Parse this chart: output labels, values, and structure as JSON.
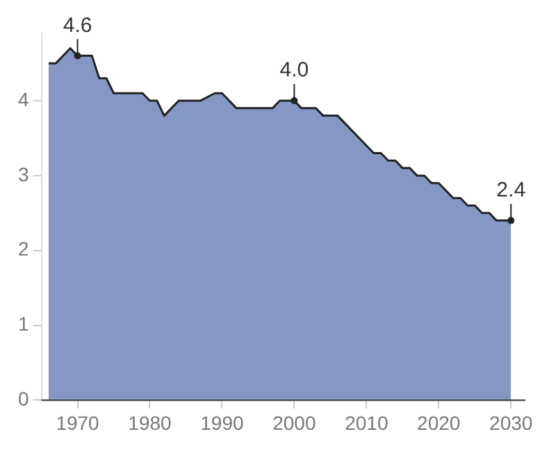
{
  "chart_data": {
    "type": "area",
    "x": [
      1966,
      1967,
      1969,
      1970,
      1972,
      1973,
      1974,
      1975,
      1979,
      1980,
      1981,
      1982,
      1984,
      1987,
      1989,
      1990,
      1992,
      1997,
      1998,
      2000,
      2001,
      2003,
      2004,
      2006,
      2007,
      2008,
      2009,
      2010,
      2011,
      2012,
      2013,
      2014,
      2015,
      2016,
      2017,
      2018,
      2019,
      2020,
      2021,
      2022,
      2023,
      2024,
      2025,
      2026,
      2027,
      2028,
      2029,
      2030
    ],
    "series": [
      {
        "color": "#8597c3",
        "values": [
          4.5,
          4.5,
          4.7,
          4.6,
          4.6,
          4.3,
          4.3,
          4.1,
          4.1,
          4.0,
          4.0,
          3.8,
          4.0,
          4.0,
          4.1,
          4.1,
          3.9,
          3.9,
          4.0,
          4.0,
          3.9,
          3.9,
          3.8,
          3.8,
          3.7,
          3.6,
          3.5,
          3.4,
          3.3,
          3.3,
          3.2,
          3.2,
          3.1,
          3.1,
          3.0,
          3.0,
          2.9,
          2.9,
          2.8,
          2.7,
          2.7,
          2.6,
          2.6,
          2.5,
          2.5,
          2.4,
          2.4,
          2.4
        ]
      }
    ],
    "xlim": [
      1965,
      2032
    ],
    "xticks": [
      1970,
      1980,
      1990,
      2000,
      2010,
      2020,
      2030
    ],
    "ylim": [
      0,
      4.9
    ],
    "yticks": [
      0,
      1,
      2,
      3,
      4
    ],
    "grid": false,
    "legend": false,
    "line_style": "solid",
    "annotations": [
      {
        "text": "4.6",
        "x": 1970,
        "y": 4.6
      },
      {
        "text": "4.0",
        "x": 2000,
        "y": 4.0
      },
      {
        "text": "2.4",
        "x": 2030,
        "y": 2.4
      }
    ]
  }
}
